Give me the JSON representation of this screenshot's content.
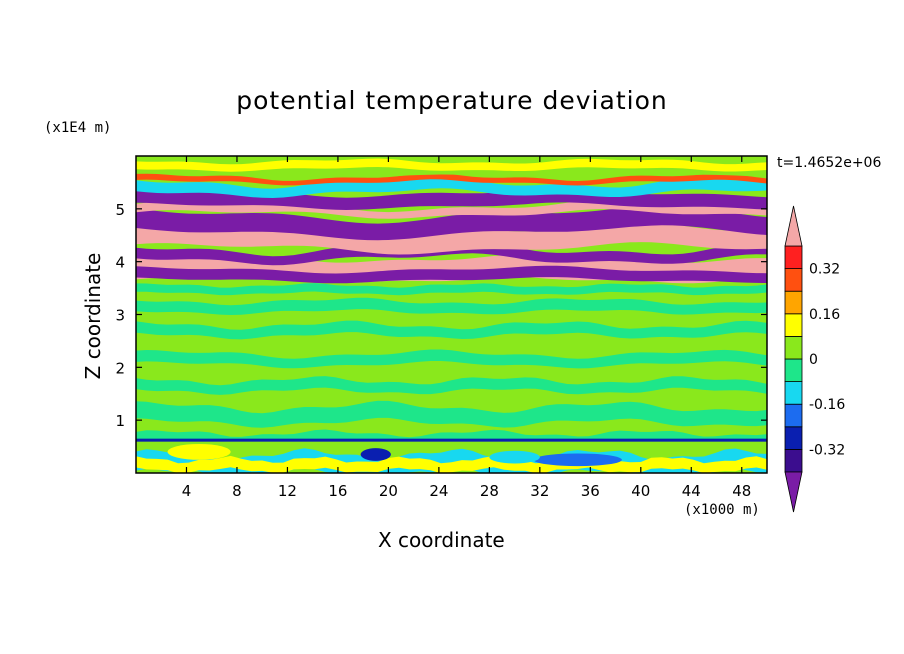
{
  "title": "potential temperature deviation",
  "time_label": "t=1.4652e+06",
  "x_unit": "(x1000 m)",
  "z_unit": "(x1E4 m)",
  "chart_data": {
    "type": "heatmap",
    "title": "potential temperature deviation",
    "xlabel": "X coordinate",
    "ylabel": "Z coordinate",
    "x_unit": "(x1000 m)",
    "y_unit": "(x1E4 m)",
    "xlim": [
      0,
      50
    ],
    "ylim": [
      0,
      6
    ],
    "x_ticks": [
      4,
      8,
      12,
      16,
      20,
      24,
      28,
      32,
      36,
      40,
      44,
      48
    ],
    "y_ticks": [
      1,
      2,
      3,
      4,
      5
    ],
    "colorbar": {
      "levels": [
        -0.4,
        -0.32,
        -0.24,
        -0.16,
        -0.08,
        0,
        0.08,
        0.16,
        0.24,
        0.32,
        0.4
      ],
      "tick_labels": [
        "-0.32",
        "-0.16",
        "0",
        "0.16",
        "0.32"
      ],
      "tick_values": [
        -0.32,
        -0.16,
        0,
        0.16,
        0.32
      ],
      "colors": [
        "#7a1ca6",
        "#3b0d8e",
        "#0a1fb0",
        "#1c6cf0",
        "#18d8f0",
        "#1ee68a",
        "#8ae81c",
        "#ffff00",
        "#ffa500",
        "#ff5010",
        "#ff2020",
        "#f4a7a7"
      ]
    }
  }
}
